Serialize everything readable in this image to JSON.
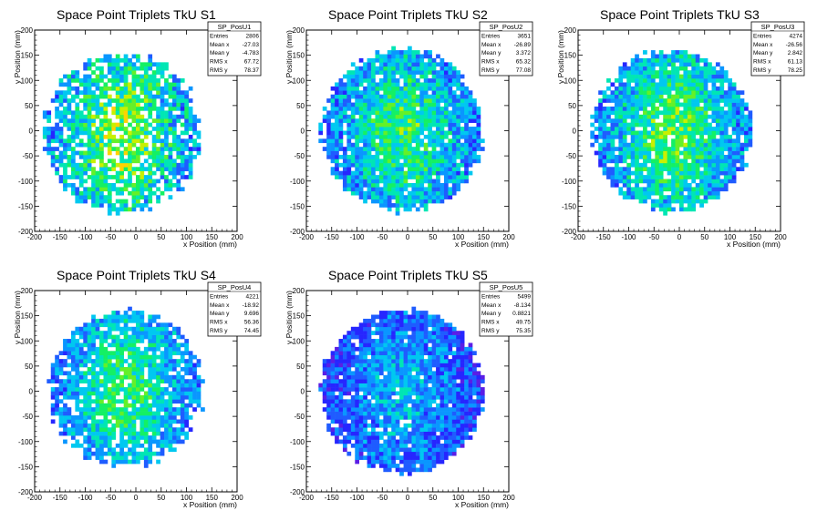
{
  "chart_data": [
    {
      "type": "heatmap",
      "title": "Space Point Triplets TkU S1",
      "xlabel": "x Position (mm)",
      "ylabel": "y Position (mm)",
      "xlim": [
        -200,
        200
      ],
      "ylim": [
        -200,
        200
      ],
      "xticks": [
        -200,
        -150,
        -100,
        -50,
        0,
        50,
        100,
        150,
        200
      ],
      "yticks": [
        -200,
        -150,
        -100,
        -50,
        0,
        50,
        100,
        150,
        200
      ],
      "grid": false,
      "colormap": "rainbow",
      "bin_size": 8,
      "profile": {
        "radius": 155,
        "center_x": -27,
        "center_y": -5,
        "density": 0.78,
        "mean_level": 0.35,
        "hot_spread": 0.35
      },
      "stats": {
        "name": "SP_PosU1",
        "rows": [
          {
            "label": "Entries",
            "value": "2806"
          },
          {
            "label": "Mean x",
            "value": "-27.03"
          },
          {
            "label": "Mean y",
            "value": "-4.783"
          },
          {
            "label": "RMS x",
            "value": "67.72"
          },
          {
            "label": "RMS y",
            "value": "78.37"
          }
        ]
      }
    },
    {
      "type": "heatmap",
      "title": "Space Point Triplets TkU S2",
      "xlabel": "x Position (mm)",
      "ylabel": "y Position (mm)",
      "xlim": [
        -200,
        200
      ],
      "ylim": [
        -200,
        200
      ],
      "xticks": [
        -200,
        -150,
        -100,
        -50,
        0,
        50,
        100,
        150,
        200
      ],
      "yticks": [
        -200,
        -150,
        -100,
        -50,
        0,
        50,
        100,
        150,
        200
      ],
      "grid": false,
      "colormap": "rainbow",
      "bin_size": 8,
      "profile": {
        "radius": 158,
        "center_x": -10,
        "center_y": 0,
        "density": 0.92,
        "mean_level": 0.3,
        "hot_spread": 0.3
      },
      "stats": {
        "name": "SP_PosU2",
        "rows": [
          {
            "label": "Entries",
            "value": "3651"
          },
          {
            "label": "Mean x",
            "value": "-26.89"
          },
          {
            "label": "Mean y",
            "value": "3.372"
          },
          {
            "label": "RMS x",
            "value": "65.32"
          },
          {
            "label": "RMS y",
            "value": "77.08"
          }
        ]
      }
    },
    {
      "type": "heatmap",
      "title": "Space Point Triplets TkU S3",
      "xlabel": "x Position (mm)",
      "ylabel": "y Position (mm)",
      "xlim": [
        -200,
        200
      ],
      "ylim": [
        -200,
        200
      ],
      "xticks": [
        -200,
        -150,
        -100,
        -50,
        0,
        50,
        100,
        150,
        200
      ],
      "yticks": [
        -200,
        -150,
        -100,
        -50,
        0,
        50,
        100,
        150,
        200
      ],
      "grid": false,
      "colormap": "rainbow",
      "bin_size": 8,
      "profile": {
        "radius": 158,
        "center_x": -15,
        "center_y": 0,
        "density": 0.9,
        "mean_level": 0.33,
        "hot_spread": 0.28
      },
      "stats": {
        "name": "SP_PosU3",
        "rows": [
          {
            "label": "Entries",
            "value": "4274"
          },
          {
            "label": "Mean x",
            "value": "-26.56"
          },
          {
            "label": "Mean y",
            "value": "2.842"
          },
          {
            "label": "RMS x",
            "value": "61.13"
          },
          {
            "label": "RMS y",
            "value": "78.25"
          }
        ]
      }
    },
    {
      "type": "heatmap",
      "title": "Space Point Triplets TkU S4",
      "xlabel": "x Position (mm)",
      "ylabel": "y Position (mm)",
      "xlim": [
        -200,
        200
      ],
      "ylim": [
        -200,
        200
      ],
      "xticks": [
        -200,
        -150,
        -100,
        -50,
        0,
        50,
        100,
        150,
        200
      ],
      "yticks": [
        -200,
        -150,
        -100,
        -50,
        0,
        50,
        100,
        150,
        200
      ],
      "grid": false,
      "colormap": "rainbow",
      "bin_size": 8,
      "profile": {
        "radius": 152,
        "center_x": -20,
        "center_y": 5,
        "density": 0.86,
        "mean_level": 0.3,
        "hot_spread": 0.25
      },
      "stats": {
        "name": "SP_PosU4",
        "rows": [
          {
            "label": "Entries",
            "value": "4221"
          },
          {
            "label": "Mean x",
            "value": "-18.92"
          },
          {
            "label": "Mean y",
            "value": "9.696"
          },
          {
            "label": "RMS x",
            "value": "56.36"
          },
          {
            "label": "RMS y",
            "value": "74.45"
          }
        ]
      }
    },
    {
      "type": "heatmap",
      "title": "Space Point Triplets TkU S5",
      "xlabel": "x Position (mm)",
      "ylabel": "y Position (mm)",
      "xlim": [
        -200,
        200
      ],
      "ylim": [
        -200,
        200
      ],
      "xticks": [
        -200,
        -150,
        -100,
        -50,
        0,
        50,
        100,
        150,
        200
      ],
      "yticks": [
        -200,
        -150,
        -100,
        -50,
        0,
        50,
        100,
        150,
        200
      ],
      "grid": false,
      "colormap": "rainbow",
      "bin_size": 8,
      "profile": {
        "radius": 160,
        "center_x": -10,
        "center_y": 0,
        "density": 0.92,
        "mean_level": 0.18,
        "hot_spread": 0.25
      },
      "stats": {
        "name": "SP_PosU5",
        "rows": [
          {
            "label": "Entries",
            "value": "5499"
          },
          {
            "label": "Mean x",
            "value": "-8.134"
          },
          {
            "label": "Mean y",
            "value": "0.8821"
          },
          {
            "label": "RMS x",
            "value": "49.75"
          },
          {
            "label": "RMS y",
            "value": "75.35"
          }
        ]
      }
    }
  ]
}
